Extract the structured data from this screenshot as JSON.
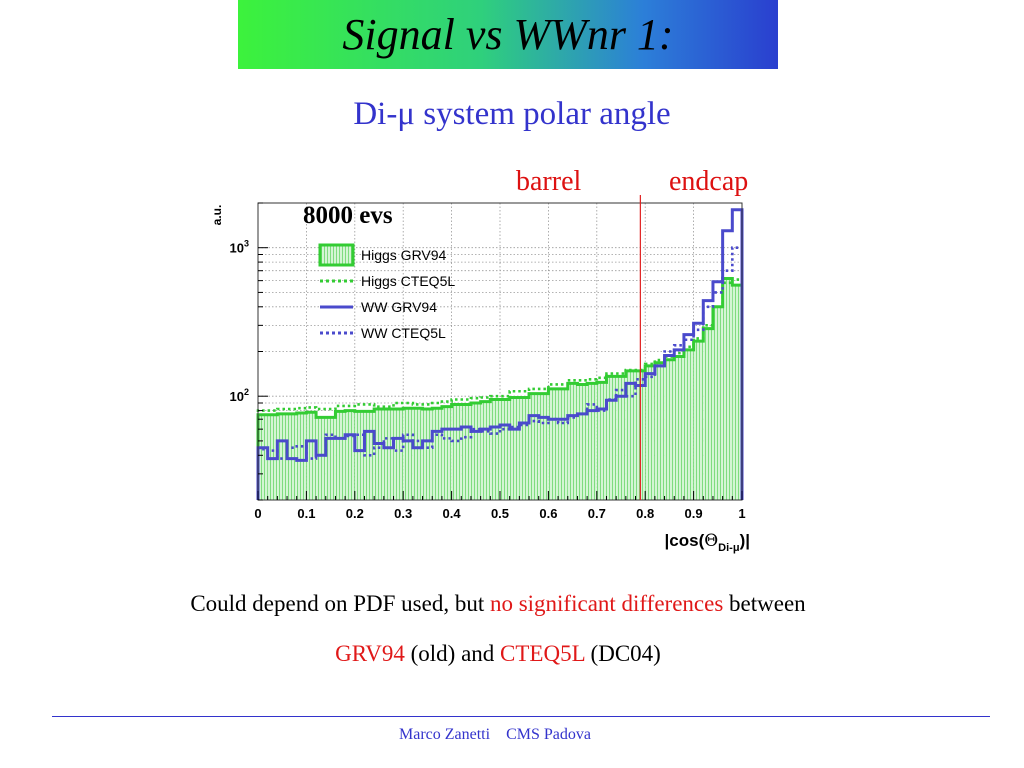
{
  "slide": {
    "title": "Signal vs WWnr 1:",
    "subtitle": "Di-μ system polar angle",
    "caption_line1": {
      "before": "Could depend on PDF used, but ",
      "highlight": "no significant differences",
      "after": " between"
    },
    "caption_line2": {
      "grv": "GRV94",
      "mid": " (old) and ",
      "cteq": "CTEQ5L",
      "end": " (DC04)"
    },
    "footer_author": "Marco Zanetti",
    "footer_affiliation": "CMS Padova"
  },
  "chart_data": {
    "type": "step-histogram",
    "title": "",
    "xlabel": "|cos(ΘDi-μ)|",
    "ylabel": "a.u.",
    "xlim": [
      0,
      1
    ],
    "ylim": [
      20,
      2000
    ],
    "yscale": "log",
    "grid": true,
    "legend_position": "top-left",
    "x_ticks": [
      "0",
      "0.1",
      "0.2",
      "0.3",
      "0.4",
      "0.5",
      "0.6",
      "0.7",
      "0.8",
      "0.9",
      "1"
    ],
    "y_ticks": [
      {
        "value": 100,
        "mantissa": "10",
        "exponent": "2"
      },
      {
        "value": 1000,
        "mantissa": "10",
        "exponent": "3"
      }
    ],
    "annotation": "8000 evs",
    "region_divider": {
      "x": 0.79,
      "color": "#e02020",
      "left_label": "barrel",
      "right_label": "endcap"
    },
    "bin_edges_start": 0,
    "bin_width": 0.02,
    "series": [
      {
        "name": "Higgs GRV94",
        "style": "filled",
        "color": "#33cc33",
        "values": [
          75,
          75,
          76,
          76,
          77,
          78,
          72,
          72,
          79,
          80,
          79,
          79,
          82,
          82,
          82,
          83,
          83,
          82,
          83,
          85,
          88,
          88,
          90,
          92,
          95,
          95,
          98,
          98,
          104,
          104,
          112,
          112,
          122,
          120,
          122,
          124,
          136,
          136,
          148,
          148,
          160,
          168,
          176,
          185,
          205,
          235,
          285,
          400,
          620,
          560
        ]
      },
      {
        "name": "Higgs CTEQ5L",
        "style": "dotted",
        "color": "#33cc33",
        "values": [
          80,
          80,
          82,
          82,
          83,
          84,
          82,
          82,
          86,
          86,
          88,
          88,
          85,
          85,
          90,
          90,
          88,
          88,
          90,
          92,
          95,
          95,
          97,
          98,
          100,
          100,
          108,
          108,
          112,
          112,
          120,
          120,
          128,
          128,
          130,
          133,
          142,
          142,
          150,
          150,
          165,
          175,
          185,
          195,
          215,
          245,
          300,
          400,
          580,
          610
        ]
      },
      {
        "name": "WW GRV94",
        "style": "solid",
        "color": "#4a4acc",
        "values": [
          45,
          38,
          50,
          38,
          37,
          50,
          40,
          52,
          52,
          55,
          43,
          58,
          48,
          45,
          52,
          50,
          45,
          50,
          58,
          60,
          60,
          62,
          58,
          60,
          62,
          64,
          60,
          66,
          74,
          72,
          70,
          70,
          74,
          76,
          80,
          82,
          94,
          100,
          122,
          118,
          142,
          160,
          188,
          205,
          260,
          310,
          440,
          590,
          1300,
          1800
        ]
      },
      {
        "name": "WW CTEQ5L",
        "style": "dotted",
        "color": "#4a4acc",
        "values": [
          44,
          43,
          38,
          45,
          46,
          38,
          40,
          55,
          52,
          54,
          55,
          40,
          45,
          52,
          43,
          55,
          50,
          45,
          55,
          52,
          50,
          53,
          60,
          58,
          56,
          60,
          62,
          64,
          68,
          66,
          70,
          66,
          72,
          76,
          88,
          80,
          95,
          110,
          100,
          130,
          135,
          160,
          200,
          220,
          240,
          280,
          400,
          500,
          700,
          1000
        ]
      }
    ]
  }
}
